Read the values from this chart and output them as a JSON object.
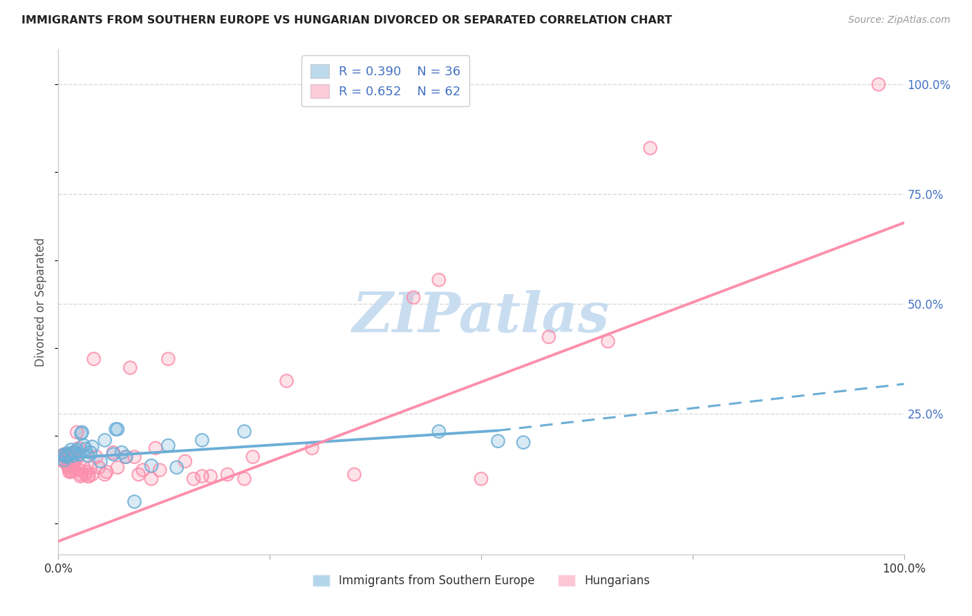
{
  "title": "IMMIGRANTS FROM SOUTHERN EUROPE VS HUNGARIAN DIVORCED OR SEPARATED CORRELATION CHART",
  "source": "Source: ZipAtlas.com",
  "ylabel": "Divorced or Separated",
  "right_yticks": [
    "100.0%",
    "75.0%",
    "50.0%",
    "25.0%"
  ],
  "right_ytick_vals": [
    1.0,
    0.75,
    0.5,
    0.25
  ],
  "legend_blue_label": "R = 0.390    N = 36",
  "legend_pink_label": "R = 0.652    N = 62",
  "blue_color": "#6baed6",
  "pink_color": "#fc8fac",
  "blue_scatter": [
    [
      0.005,
      0.155
    ],
    [
      0.007,
      0.145
    ],
    [
      0.008,
      0.158
    ],
    [
      0.009,
      0.152
    ],
    [
      0.01,
      0.155
    ],
    [
      0.012,
      0.16
    ],
    [
      0.013,
      0.155
    ],
    [
      0.015,
      0.168
    ],
    [
      0.016,
      0.16
    ],
    [
      0.018,
      0.155
    ],
    [
      0.02,
      0.162
    ],
    [
      0.022,
      0.168
    ],
    [
      0.025,
      0.158
    ],
    [
      0.027,
      0.205
    ],
    [
      0.028,
      0.208
    ],
    [
      0.03,
      0.178
    ],
    [
      0.032,
      0.17
    ],
    [
      0.035,
      0.155
    ],
    [
      0.038,
      0.162
    ],
    [
      0.04,
      0.175
    ],
    [
      0.05,
      0.142
    ],
    [
      0.055,
      0.19
    ],
    [
      0.065,
      0.158
    ],
    [
      0.068,
      0.215
    ],
    [
      0.07,
      0.215
    ],
    [
      0.075,
      0.162
    ],
    [
      0.08,
      0.152
    ],
    [
      0.09,
      0.05
    ],
    [
      0.11,
      0.132
    ],
    [
      0.13,
      0.178
    ],
    [
      0.14,
      0.128
    ],
    [
      0.17,
      0.19
    ],
    [
      0.22,
      0.21
    ],
    [
      0.45,
      0.21
    ],
    [
      0.52,
      0.188
    ],
    [
      0.55,
      0.185
    ]
  ],
  "pink_scatter": [
    [
      0.003,
      0.148
    ],
    [
      0.005,
      0.155
    ],
    [
      0.006,
      0.142
    ],
    [
      0.007,
      0.158
    ],
    [
      0.008,
      0.152
    ],
    [
      0.009,
      0.155
    ],
    [
      0.01,
      0.145
    ],
    [
      0.011,
      0.132
    ],
    [
      0.012,
      0.128
    ],
    [
      0.013,
      0.118
    ],
    [
      0.014,
      0.122
    ],
    [
      0.015,
      0.118
    ],
    [
      0.016,
      0.138
    ],
    [
      0.017,
      0.128
    ],
    [
      0.018,
      0.138
    ],
    [
      0.019,
      0.122
    ],
    [
      0.02,
      0.142
    ],
    [
      0.022,
      0.208
    ],
    [
      0.024,
      0.172
    ],
    [
      0.025,
      0.122
    ],
    [
      0.026,
      0.108
    ],
    [
      0.027,
      0.112
    ],
    [
      0.03,
      0.128
    ],
    [
      0.032,
      0.112
    ],
    [
      0.033,
      0.118
    ],
    [
      0.035,
      0.108
    ],
    [
      0.036,
      0.108
    ],
    [
      0.038,
      0.128
    ],
    [
      0.04,
      0.112
    ],
    [
      0.042,
      0.375
    ],
    [
      0.045,
      0.152
    ],
    [
      0.048,
      0.128
    ],
    [
      0.055,
      0.112
    ],
    [
      0.057,
      0.118
    ],
    [
      0.065,
      0.162
    ],
    [
      0.07,
      0.128
    ],
    [
      0.08,
      0.152
    ],
    [
      0.085,
      0.355
    ],
    [
      0.09,
      0.152
    ],
    [
      0.095,
      0.112
    ],
    [
      0.1,
      0.122
    ],
    [
      0.11,
      0.102
    ],
    [
      0.115,
      0.172
    ],
    [
      0.12,
      0.122
    ],
    [
      0.13,
      0.375
    ],
    [
      0.15,
      0.142
    ],
    [
      0.16,
      0.102
    ],
    [
      0.17,
      0.108
    ],
    [
      0.18,
      0.108
    ],
    [
      0.2,
      0.112
    ],
    [
      0.22,
      0.102
    ],
    [
      0.23,
      0.152
    ],
    [
      0.27,
      0.325
    ],
    [
      0.3,
      0.172
    ],
    [
      0.35,
      0.112
    ],
    [
      0.42,
      0.515
    ],
    [
      0.45,
      0.555
    ],
    [
      0.5,
      0.102
    ],
    [
      0.58,
      0.425
    ],
    [
      0.65,
      0.415
    ],
    [
      0.7,
      0.855
    ],
    [
      0.97,
      1.0
    ]
  ],
  "blue_line_solid": {
    "x0": 0.0,
    "y0": 0.148,
    "x1": 0.52,
    "y1": 0.212
  },
  "blue_line_dashed": {
    "x0": 0.52,
    "y0": 0.212,
    "x1": 1.0,
    "y1": 0.318
  },
  "pink_line": {
    "x0": 0.0,
    "y0": -0.04,
    "x1": 1.0,
    "y1": 0.685
  },
  "ylim_min": -0.07,
  "ylim_max": 1.08,
  "xticks": [
    0.0,
    0.25,
    0.5,
    0.75,
    1.0
  ],
  "xtick_labels": [
    "0.0%",
    "",
    "",
    "",
    "100.0%"
  ],
  "watermark_text": "ZIPatlas",
  "watermark_color": "#c8ddf0",
  "background_color": "#ffffff",
  "grid_color": "#d8d8d8",
  "title_color": "#222222",
  "right_axis_color": "#4472c4",
  "legend_text_color": "#4472c4",
  "legend_border_color": "#cccccc",
  "bottom_legend_blue": "Immigrants from Southern Europe",
  "bottom_legend_pink": "Hungarians"
}
